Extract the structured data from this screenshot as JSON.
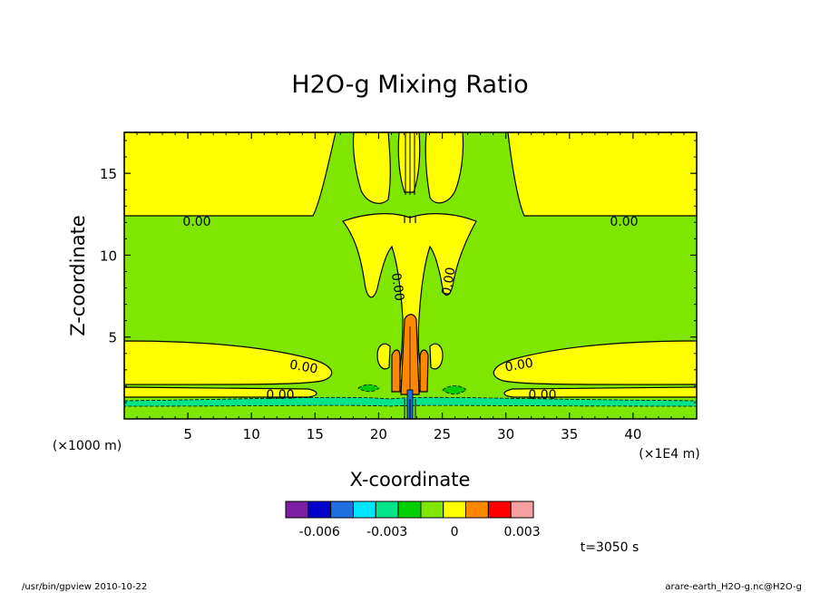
{
  "chart_data": {
    "type": "contour",
    "title": "H2O-g Mixing Ratio",
    "xlabel": "X-coordinate",
    "ylabel": "Z-coordinate",
    "x_unit_label": "(×1E4 m)",
    "y_unit_label": "(×1000 m)",
    "xlim": [
      0,
      45
    ],
    "ylim": [
      0,
      17.5
    ],
    "x_ticks": [
      5,
      10,
      15,
      20,
      25,
      30,
      35,
      40
    ],
    "y_ticks": [
      5,
      10,
      15
    ],
    "contour_labels": [
      "0.00",
      "0.00",
      "0.00",
      "0.00",
      "0.00",
      "0.00",
      "0.00",
      "0.00"
    ],
    "colorbar": {
      "colors": [
        "#7b1fa2",
        "#0000cc",
        "#1f6fe0",
        "#00e5ff",
        "#00e58a",
        "#00d000",
        "#7fe600",
        "#ffff00",
        "#ff8800",
        "#ff0000",
        "#f4a0a0"
      ],
      "tick_labels": [
        "-0.006",
        "-0.003",
        "0",
        "0.003"
      ],
      "tick_values": [
        -0.006,
        -0.003,
        0,
        0.003
      ],
      "range": [
        -0.0075,
        0.0035
      ]
    }
  },
  "annotations": {
    "time": "t=3050 s",
    "program": "/usr/bin/gpview   2010-10-22",
    "source": "arare-earth_H2O-g.nc@H2O-g"
  }
}
